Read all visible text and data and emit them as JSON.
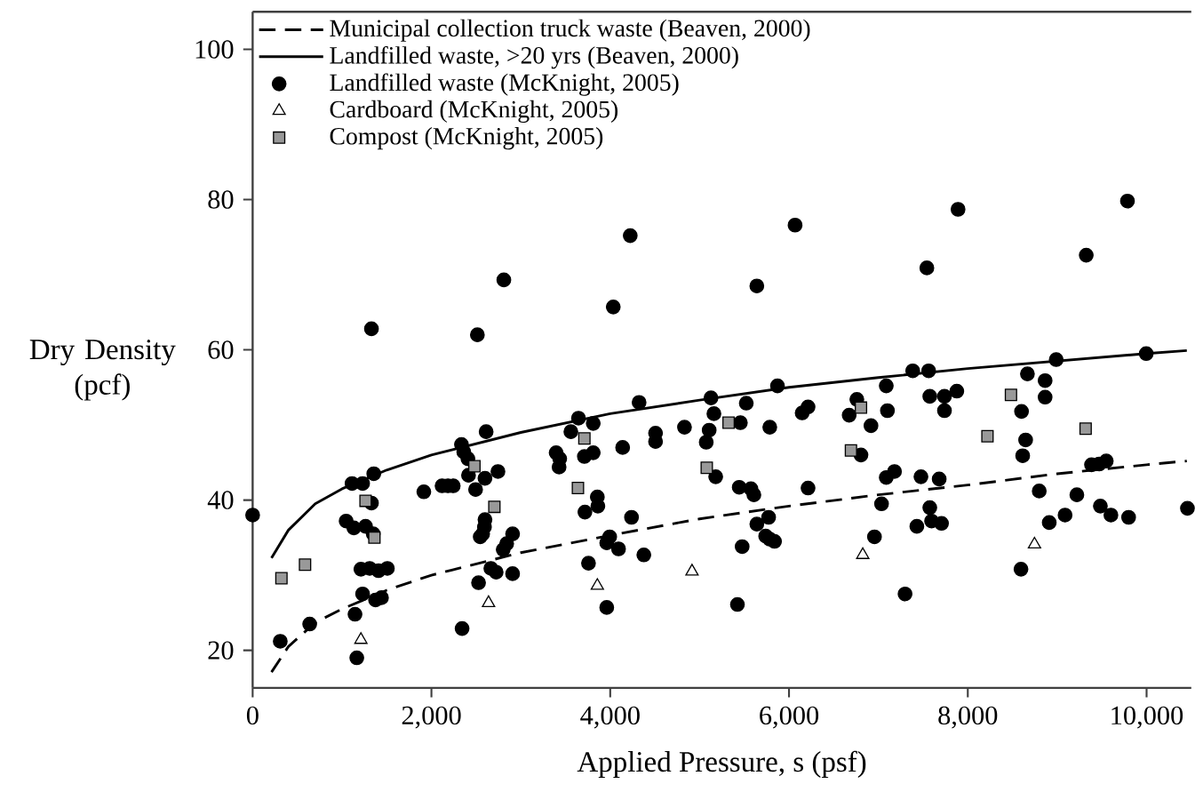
{
  "chart_data": {
    "type": "scatter",
    "xlabel": "Applied Pressure, s (psf)",
    "ylabel": "Dry Density (pcf)",
    "xlim": [
      0,
      10500
    ],
    "ylim": [
      15,
      105
    ],
    "xticks": [
      0,
      {
        "value": 2000,
        "label": "2,000"
      },
      {
        "value": 4000,
        "label": "4,000"
      },
      {
        "value": 6000,
        "label": "6,000"
      },
      {
        "value": 8000,
        "label": "8,000"
      },
      {
        "value": 10000,
        "label": "10,000"
      }
    ],
    "yticks": [
      20,
      40,
      60,
      80,
      100
    ],
    "grid": false,
    "legend": "top left",
    "series": [
      {
        "name": "Municipal collection truck waste (Beaven, 2000)",
        "type": "line",
        "line_style": "dashed",
        "marker": "none",
        "color": "#000000",
        "x": [
          211,
          400,
          700,
          1000,
          1500,
          2000,
          2500,
          3000,
          4000,
          5000,
          6000,
          7000,
          8000,
          9000,
          10000,
          10450
        ],
        "values": [
          17.1,
          20.5,
          23.7,
          25.5,
          28,
          30,
          31.5,
          33,
          35.3,
          37.5,
          39.2,
          40.7,
          42,
          43.5,
          44.7,
          45.2
        ]
      },
      {
        "name": "Landfilled waste, >20 yrs (Beaven, 2000)",
        "type": "line",
        "line_style": "solid",
        "marker": "none",
        "color": "#000000",
        "x": [
          211,
          400,
          700,
          1000,
          1500,
          2000,
          2500,
          3000,
          4000,
          5000,
          6000,
          7000,
          8000,
          9000,
          10000,
          10450
        ],
        "values": [
          32.3,
          36,
          39.5,
          41.5,
          44,
          46,
          47.5,
          49,
          51.5,
          53.3,
          55,
          56.3,
          57.5,
          58.5,
          59.5,
          59.9
        ]
      },
      {
        "name": "Landfilled waste (McKnight, 2005)",
        "marker": "circle",
        "color": "#000000",
        "x": [
          0,
          309,
          638,
          1046,
          1132,
          1263,
          1349,
          1112,
          1230,
          1355,
          1329,
          1211,
          1309,
          1408,
          1507,
          1230,
          1375,
          1441,
          1145,
          1165,
          1915,
          2119,
          2185,
          2244,
          2336,
          2362,
          2408,
          2415,
          2494,
          2612,
          2599,
          2744,
          2573,
          2546,
          2599,
          2593,
          2527,
          2665,
          2724,
          2908,
          2803,
          2842,
          2908,
          2343,
          3395,
          3435,
          3428,
          3560,
          3645,
          3810,
          3711,
          3810,
          3856,
          3862,
          3717,
          3757,
          3961,
          3994,
          3961,
          4093,
          4139,
          4238,
          4323,
          4376,
          4507,
          4507,
          4831,
          5127,
          5160,
          5107,
          5074,
          5180,
          5456,
          5522,
          5443,
          5574,
          5607,
          5640,
          5772,
          5739,
          5785,
          5838,
          5476,
          5423,
          5785,
          5871,
          6147,
          6213,
          6213,
          6673,
          6759,
          6805,
          6917,
          7088,
          7101,
          7088,
          7180,
          7035,
          6956,
          7298,
          7384,
          7562,
          7575,
          7739,
          7739,
          7877,
          7476,
          7680,
          7575,
          7430,
          7595,
          7706,
          8667,
          8865,
          8865,
          8601,
          8647,
          8614,
          8595,
          8799,
          8911,
          9088,
          9220,
          8989,
          9996,
          9384,
          9470,
          9549,
          9483,
          9601,
          9799,
          10457,
          1329,
          2514,
          2810,
          4034,
          4224,
          5640,
          6068,
          7542,
          7891,
          9325,
          9786
        ],
        "values": [
          38.0,
          21.2,
          23.5,
          37.2,
          36.3,
          36.5,
          35.5,
          42.2,
          42.2,
          43.5,
          39.6,
          30.8,
          30.9,
          30.6,
          30.9,
          27.5,
          26.7,
          27.0,
          24.8,
          19.0,
          41.1,
          41.9,
          41.9,
          41.9,
          47.4,
          46.4,
          45.5,
          43.3,
          41.4,
          49.1,
          42.9,
          43.8,
          35.5,
          35.1,
          37.4,
          36.4,
          29.0,
          30.9,
          30.4,
          30.2,
          33.4,
          34.2,
          35.5,
          22.9,
          46.3,
          45.5,
          44.4,
          49.1,
          50.9,
          50.2,
          45.8,
          46.3,
          40.4,
          39.2,
          38.4,
          31.6,
          25.7,
          35.1,
          34.3,
          33.5,
          47.0,
          37.7,
          53.0,
          32.7,
          48.9,
          47.8,
          49.7,
          53.6,
          51.5,
          49.3,
          47.7,
          43.1,
          50.3,
          52.9,
          41.7,
          41.5,
          40.7,
          36.8,
          37.7,
          35.2,
          34.8,
          34.5,
          33.8,
          26.1,
          49.7,
          55.2,
          51.6,
          52.4,
          41.6,
          51.3,
          53.4,
          46.0,
          49.9,
          55.2,
          51.9,
          43.0,
          43.8,
          39.5,
          35.1,
          27.5,
          57.2,
          57.2,
          53.8,
          53.8,
          51.9,
          54.5,
          43.1,
          42.8,
          39.0,
          36.5,
          37.2,
          36.9,
          56.8,
          55.9,
          53.7,
          51.8,
          48.0,
          45.9,
          30.8,
          41.2,
          37.0,
          38.0,
          40.7,
          58.7,
          59.5,
          44.7,
          44.8,
          45.2,
          39.2,
          38.0,
          37.7,
          38.9,
          62.8,
          62.0,
          69.3,
          65.7,
          75.2,
          68.5,
          76.6,
          70.9,
          78.7,
          72.6,
          79.8
        ]
      },
      {
        "name": "Cardboard (McKnight, 2005)",
        "marker": "triangle",
        "color": "#ffffff",
        "x": [
          1211,
          2639,
          3856,
          4915,
          6825,
          8746
        ],
        "values": [
          21.4,
          26.3,
          28.6,
          30.5,
          32.7,
          34.1
        ]
      },
      {
        "name": "Compost (McKnight, 2005)",
        "marker": "square",
        "color": "#999999",
        "x": [
          322,
          586,
          1263,
          1362,
          2481,
          2704,
          3711,
          3639,
          5080,
          5324,
          6805,
          6693,
          8220,
          8483,
          9318
        ],
        "values": [
          29.6,
          31.4,
          39.9,
          35.0,
          44.5,
          39.1,
          48.2,
          41.6,
          44.3,
          50.3,
          52.3,
          46.6,
          48.5,
          54.0,
          49.5
        ]
      }
    ]
  }
}
